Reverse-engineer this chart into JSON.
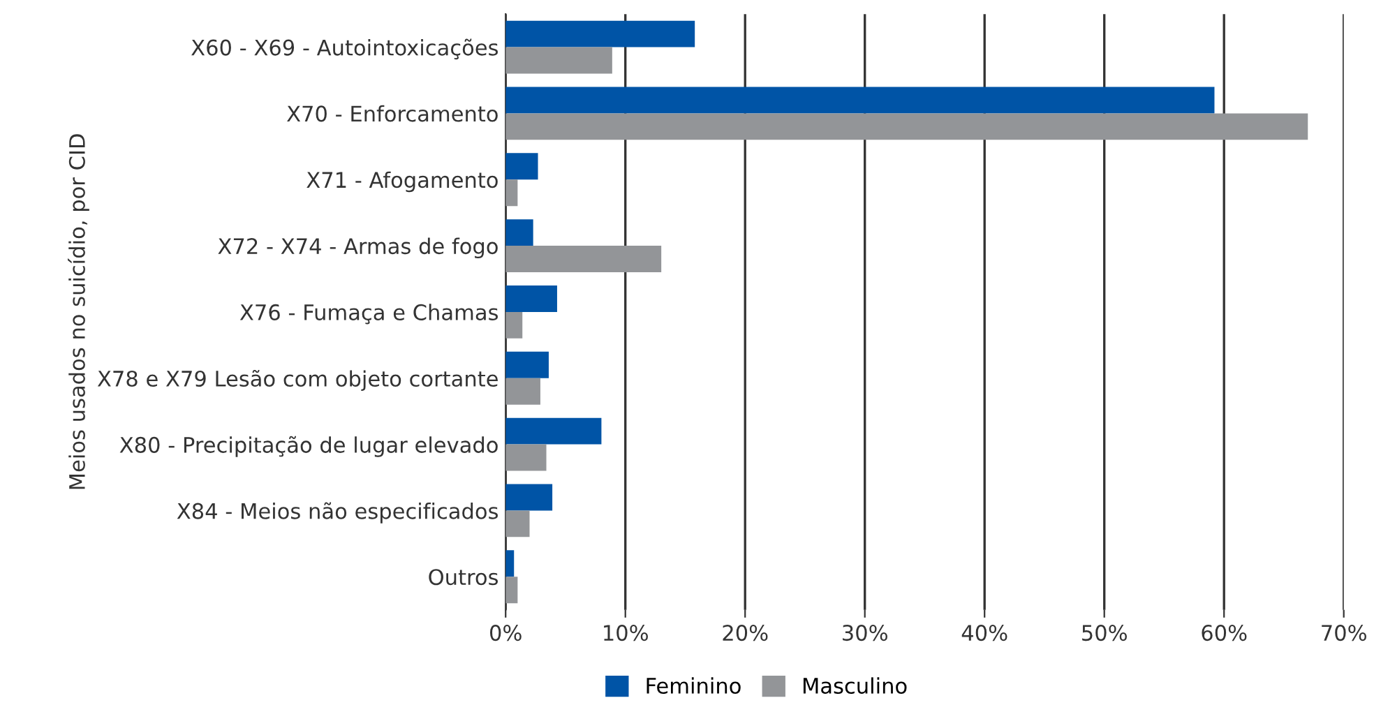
{
  "chart_data": {
    "type": "bar",
    "orientation": "horizontal",
    "ylabel": "Meios usados no suicídio, por CID",
    "categories": [
      "X60 - X69 - Autointoxicações",
      "X70 - Enforcamento",
      "X71 - Afogamento",
      "X72 - X74 - Armas de fogo",
      "X76 - Fumaça e Chamas",
      "X78 e X79 Lesão com objeto cortante",
      "X80 - Precipitação de lugar elevado",
      "X84 - Meios não especificados",
      "Outros"
    ],
    "series": [
      {
        "name": "Feminino",
        "color": "#0054a6",
        "values": [
          15.8,
          59.2,
          2.7,
          2.3,
          4.3,
          3.6,
          8.0,
          3.9,
          0.7
        ]
      },
      {
        "name": "Masculino",
        "color": "#939598",
        "values": [
          8.9,
          67.0,
          1.0,
          13.0,
          1.4,
          2.9,
          3.4,
          2.0,
          1.0
        ]
      }
    ],
    "xlim": [
      0,
      70
    ],
    "xticks": [
      {
        "value": 0,
        "label": "0%"
      },
      {
        "value": 10,
        "label": "10%"
      },
      {
        "value": 20,
        "label": "20%"
      },
      {
        "value": 30,
        "label": "30%"
      },
      {
        "value": 40,
        "label": "40%"
      },
      {
        "value": 50,
        "label": "50%"
      },
      {
        "value": 60,
        "label": "60%"
      },
      {
        "value": 70,
        "label": "70%"
      }
    ],
    "grid": "x",
    "legend": "bottom"
  }
}
